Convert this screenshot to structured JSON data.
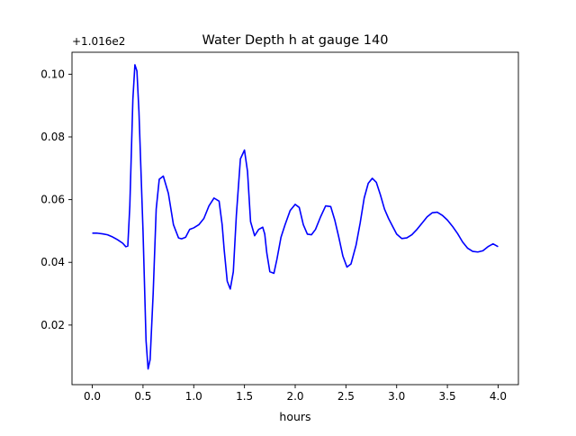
{
  "chart_data": {
    "type": "line",
    "title": "Water Depth h at gauge 140",
    "xlabel": "hours",
    "ylabel": "",
    "offset_label": "+1.016e2",
    "xlim": [
      -0.2,
      4.2
    ],
    "ylim": [
      0.001,
      0.107
    ],
    "x_ticks": [
      0.0,
      0.5,
      1.0,
      1.5,
      2.0,
      2.5,
      3.0,
      3.5,
      4.0
    ],
    "x_tick_labels": [
      "0.0",
      "0.5",
      "1.0",
      "1.5",
      "2.0",
      "2.5",
      "3.0",
      "3.5",
      "4.0"
    ],
    "y_ticks": [
      0.02,
      0.04,
      0.06,
      0.08,
      0.1
    ],
    "y_tick_labels": [
      "0.02",
      "0.04",
      "0.06",
      "0.08",
      "0.10"
    ],
    "grid": false,
    "legend": "none",
    "series": [
      {
        "color": "#0000ff",
        "x": [
          0.0,
          0.05,
          0.1,
          0.15,
          0.2,
          0.25,
          0.3,
          0.33,
          0.35,
          0.37,
          0.4,
          0.42,
          0.44,
          0.46,
          0.5,
          0.53,
          0.55,
          0.57,
          0.6,
          0.63,
          0.66,
          0.7,
          0.75,
          0.8,
          0.85,
          0.88,
          0.92,
          0.96,
          1.0,
          1.05,
          1.1,
          1.15,
          1.2,
          1.25,
          1.28,
          1.3,
          1.33,
          1.36,
          1.39,
          1.42,
          1.46,
          1.5,
          1.53,
          1.56,
          1.6,
          1.64,
          1.68,
          1.7,
          1.72,
          1.75,
          1.79,
          1.82,
          1.86,
          1.9,
          1.95,
          2.0,
          2.04,
          2.08,
          2.12,
          2.16,
          2.2,
          2.25,
          2.3,
          2.35,
          2.39,
          2.43,
          2.47,
          2.51,
          2.55,
          2.6,
          2.64,
          2.68,
          2.72,
          2.76,
          2.8,
          2.84,
          2.88,
          2.92,
          2.96,
          3.0,
          3.05,
          3.1,
          3.15,
          3.2,
          3.25,
          3.3,
          3.35,
          3.4,
          3.45,
          3.5,
          3.55,
          3.6,
          3.65,
          3.7,
          3.75,
          3.8,
          3.85,
          3.9,
          3.95,
          4.0
        ],
        "y": [
          0.0493,
          0.0493,
          0.0491,
          0.0488,
          0.0481,
          0.0472,
          0.0461,
          0.045,
          0.0452,
          0.058,
          0.092,
          0.103,
          0.101,
          0.088,
          0.05,
          0.015,
          0.006,
          0.009,
          0.03,
          0.057,
          0.0665,
          0.0675,
          0.062,
          0.052,
          0.0478,
          0.0475,
          0.048,
          0.0505,
          0.051,
          0.052,
          0.054,
          0.058,
          0.0605,
          0.0595,
          0.052,
          0.044,
          0.034,
          0.0315,
          0.037,
          0.055,
          0.073,
          0.0758,
          0.069,
          0.053,
          0.0485,
          0.0505,
          0.0512,
          0.049,
          0.043,
          0.037,
          0.0365,
          0.041,
          0.048,
          0.052,
          0.0565,
          0.0585,
          0.0575,
          0.052,
          0.049,
          0.0488,
          0.0505,
          0.0545,
          0.058,
          0.0578,
          0.0535,
          0.048,
          0.042,
          0.0385,
          0.0395,
          0.0455,
          0.0525,
          0.0605,
          0.0652,
          0.0668,
          0.0655,
          0.0615,
          0.057,
          0.054,
          0.0515,
          0.049,
          0.0476,
          0.0478,
          0.0488,
          0.0505,
          0.0525,
          0.0545,
          0.0558,
          0.056,
          0.055,
          0.0535,
          0.0515,
          0.0492,
          0.0465,
          0.0445,
          0.0435,
          0.0433,
          0.0437,
          0.045,
          0.0459,
          0.045
        ]
      }
    ]
  }
}
